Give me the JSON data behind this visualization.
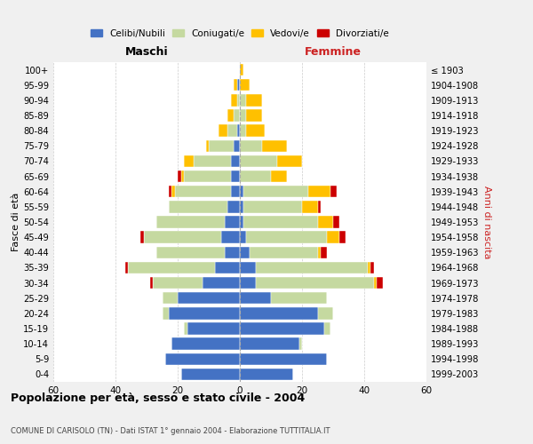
{
  "age_groups": [
    "0-4",
    "5-9",
    "10-14",
    "15-19",
    "20-24",
    "25-29",
    "30-34",
    "35-39",
    "40-44",
    "45-49",
    "50-54",
    "55-59",
    "60-64",
    "65-69",
    "70-74",
    "75-79",
    "80-84",
    "85-89",
    "90-94",
    "95-99",
    "100+"
  ],
  "birth_years": [
    "1999-2003",
    "1994-1998",
    "1989-1993",
    "1984-1988",
    "1979-1983",
    "1974-1978",
    "1969-1973",
    "1964-1968",
    "1959-1963",
    "1954-1958",
    "1949-1953",
    "1944-1948",
    "1939-1943",
    "1934-1938",
    "1929-1933",
    "1924-1928",
    "1919-1923",
    "1914-1918",
    "1909-1913",
    "1904-1908",
    "≤ 1903"
  ],
  "colors": {
    "celibi": "#4472c4",
    "coniugati": "#c5d9a0",
    "vedovi": "#ffc000",
    "divorziati": "#cc0000"
  },
  "maschi": {
    "celibi": [
      19,
      24,
      22,
      17,
      23,
      20,
      12,
      8,
      5,
      6,
      5,
      4,
      3,
      3,
      3,
      2,
      1,
      0,
      0,
      1,
      0
    ],
    "coniugati": [
      0,
      0,
      0,
      1,
      2,
      5,
      16,
      28,
      22,
      25,
      22,
      19,
      18,
      15,
      12,
      8,
      3,
      2,
      1,
      0,
      0
    ],
    "vedovi": [
      0,
      0,
      0,
      0,
      0,
      0,
      0,
      0,
      0,
      0,
      0,
      0,
      1,
      1,
      3,
      1,
      3,
      2,
      2,
      1,
      0
    ],
    "divorziati": [
      0,
      0,
      0,
      0,
      0,
      0,
      1,
      1,
      0,
      1,
      0,
      0,
      1,
      1,
      0,
      0,
      0,
      0,
      0,
      0,
      0
    ]
  },
  "femmine": {
    "celibi": [
      17,
      28,
      19,
      27,
      25,
      10,
      5,
      5,
      3,
      2,
      1,
      1,
      1,
      0,
      0,
      0,
      0,
      0,
      0,
      0,
      0
    ],
    "coniugati": [
      0,
      0,
      1,
      2,
      5,
      18,
      38,
      36,
      22,
      26,
      24,
      19,
      21,
      10,
      12,
      7,
      2,
      2,
      2,
      0,
      0
    ],
    "vedovi": [
      0,
      0,
      0,
      0,
      0,
      0,
      1,
      1,
      1,
      4,
      5,
      5,
      7,
      5,
      8,
      8,
      6,
      5,
      5,
      3,
      1
    ],
    "divorziati": [
      0,
      0,
      0,
      0,
      0,
      0,
      2,
      1,
      2,
      2,
      2,
      1,
      2,
      0,
      0,
      0,
      0,
      0,
      0,
      0,
      0
    ]
  },
  "xlim": 60,
  "title": "Popolazione per età, sesso e stato civile - 2004",
  "subtitle": "COMUNE DI CARISOLO (TN) - Dati ISTAT 1° gennaio 2004 - Elaborazione TUTTITALIA.IT",
  "ylabel_left": "Fasce di età",
  "ylabel_right": "Anni di nascita",
  "xlabel_maschi": "Maschi",
  "xlabel_femmine": "Femmine",
  "legend_labels": [
    "Celibi/Nubili",
    "Coniugati/e",
    "Vedovi/e",
    "Divorziati/e"
  ],
  "bg_color": "#f0f0f0",
  "plot_bg_color": "#ffffff"
}
